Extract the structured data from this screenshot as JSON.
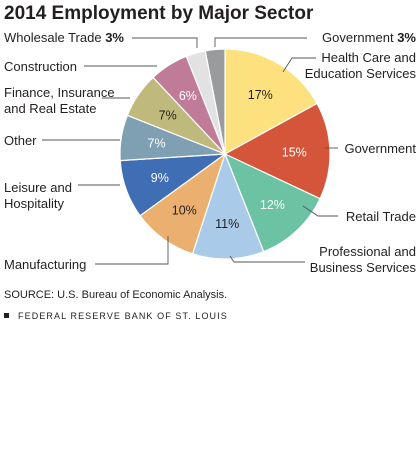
{
  "chart_data": {
    "type": "pie",
    "title": "2014 Employment by Major Sector",
    "unit": "%",
    "slices": [
      {
        "label": "Health Care and Education Services",
        "value": 17,
        "color": "#fde17e",
        "label_color": "#231f20"
      },
      {
        "label": "Government",
        "value": 15,
        "color": "#d4553a",
        "label_color": "#ffffff"
      },
      {
        "label": "Retail Trade",
        "value": 12,
        "color": "#6cc3a4",
        "label_color": "#ffffff"
      },
      {
        "label": "Professional and Business Services",
        "value": 11,
        "color": "#a9cbe9",
        "label_color": "#231f20"
      },
      {
        "label": "Manufacturing",
        "value": 10,
        "color": "#ebb06f",
        "label_color": "#231f20"
      },
      {
        "label": "Leisure and Hospitality",
        "value": 9,
        "color": "#3f6eb5",
        "label_color": "#ffffff"
      },
      {
        "label": "Other",
        "value": 7,
        "color": "#7f9fb2",
        "label_color": "#ffffff"
      },
      {
        "label": "Finance, Insurance and Real Estate",
        "value": 7,
        "color": "#bfba7b",
        "label_color": "#231f20"
      },
      {
        "label": "Construction",
        "value": 6,
        "color": "#c07b98",
        "label_color": "#ffffff"
      },
      {
        "label": "Wholesale Trade",
        "value": 3,
        "color": "#e2e2e3",
        "label_color": "#231f20"
      },
      {
        "label": "Government",
        "value": 3,
        "color": "#9a9b9d",
        "label_color": "#231f20"
      }
    ]
  },
  "labels": {
    "health_care": [
      "Health Care and",
      "Education Services"
    ],
    "government_main": "Government",
    "retail": "Retail Trade",
    "professional": [
      "Professional and",
      "Business Services"
    ],
    "manufacturing": "Manufacturing",
    "leisure": [
      "Leisure and",
      "Hospitality"
    ],
    "other": "Other",
    "finance": [
      "Finance, Insurance",
      "and Real Estate"
    ],
    "construction": "Construction",
    "wholesale_name": "Wholesale Trade",
    "wholesale_pct": "3%",
    "government_small_name": "Government",
    "government_small_pct": "3%"
  },
  "footer": {
    "source": "SOURCE: U.S. Bureau of Economic Analysis.",
    "publisher": "FEDERAL RESERVE BANK OF ST. LOUIS"
  }
}
